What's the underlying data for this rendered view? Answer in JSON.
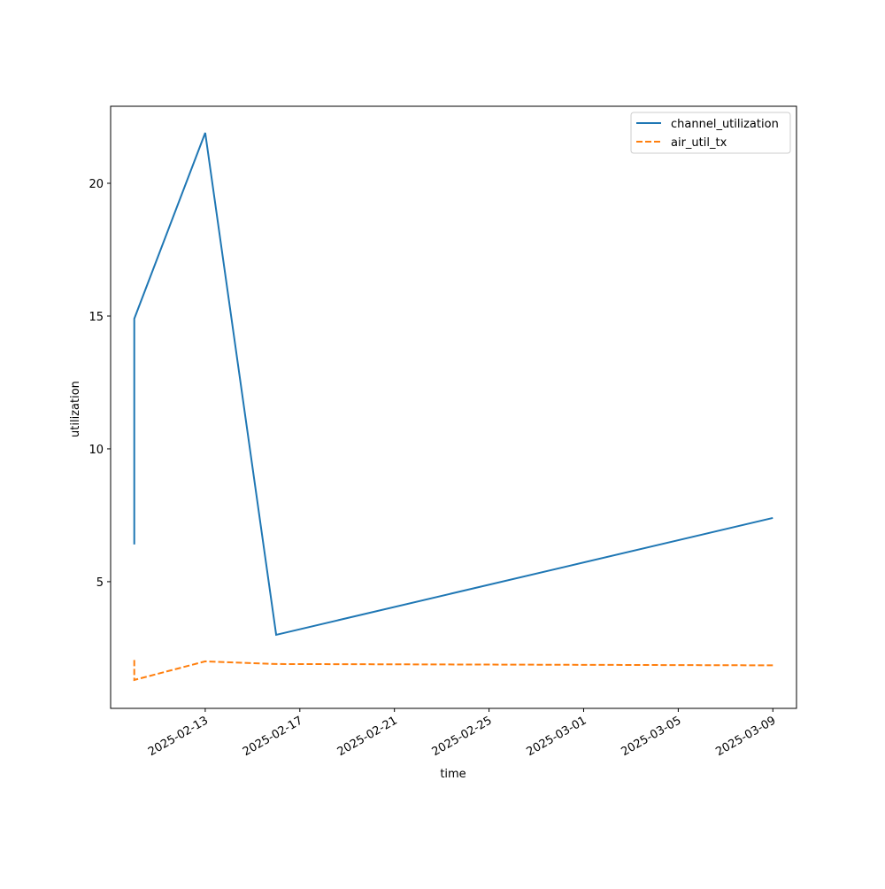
{
  "chart_data": {
    "type": "line",
    "x_label": "time",
    "y_label": "utilization",
    "x": [
      "2025-02-10",
      "2025-02-10",
      "2025-02-13",
      "2025-02-16",
      "2025-03-09"
    ],
    "series": [
      {
        "name": "channel_utilization",
        "color": "#1f77b4",
        "linestyle": "solid",
        "values": [
          6.4,
          14.9,
          21.9,
          3.0,
          7.4
        ]
      },
      {
        "name": "air_util_tx",
        "color": "#ff7f0e",
        "linestyle": "dashed",
        "values": [
          2.05,
          1.3,
          2.0,
          1.9,
          1.85
        ]
      }
    ],
    "xlim": [
      "2025-02-09",
      "2025-03-10"
    ],
    "xticks": [
      "2025-02-13",
      "2025-02-17",
      "2025-02-21",
      "2025-02-25",
      "2025-03-01",
      "2025-03-05",
      "2025-03-09"
    ],
    "ylim": [
      0.23,
      22.9
    ],
    "yticks": [
      5,
      10,
      15,
      20
    ],
    "grid": false,
    "legend": "upper right"
  }
}
